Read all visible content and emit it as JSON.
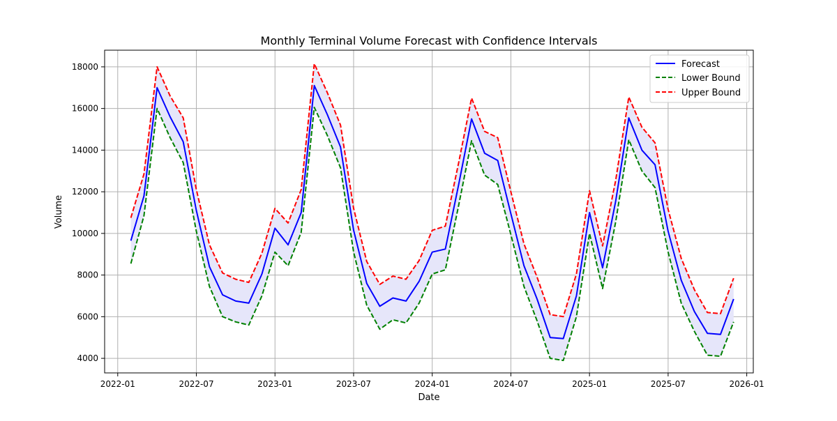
{
  "chart_data": {
    "type": "line",
    "title": "Monthly Terminal Volume Forecast with Confidence Intervals",
    "xlabel": "Date",
    "ylabel": "Volume",
    "x_range_months": [
      -1,
      48.5
    ],
    "ylim": [
      3300,
      18800
    ],
    "grid": true,
    "legend_position": "top-right",
    "x_ticks": [
      {
        "label": "2022-01",
        "month": 0
      },
      {
        "label": "2022-07",
        "month": 6
      },
      {
        "label": "2023-01",
        "month": 12
      },
      {
        "label": "2023-07",
        "month": 18
      },
      {
        "label": "2024-01",
        "month": 24
      },
      {
        "label": "2024-07",
        "month": 30
      },
      {
        "label": "2025-01",
        "month": 36
      },
      {
        "label": "2025-07",
        "month": 42
      },
      {
        "label": "2026-01",
        "month": 48
      }
    ],
    "y_ticks": [
      4000,
      6000,
      8000,
      10000,
      12000,
      14000,
      16000,
      18000
    ],
    "x_months_start": 1,
    "series": [
      {
        "name": "Forecast",
        "color": "#0000ff",
        "style": "solid",
        "values": [
          9650,
          11800,
          17000,
          15600,
          14400,
          11100,
          8400,
          7050,
          6750,
          6650,
          8050,
          10250,
          9450,
          11000,
          17100,
          15700,
          14150,
          10150,
          7600,
          6500,
          6900,
          6750,
          7700,
          9100,
          9250,
          12300,
          15500,
          13850,
          13500,
          10950,
          8450,
          6850,
          5000,
          4950,
          7000,
          11000,
          8350,
          11550,
          15550,
          14000,
          13300,
          10100,
          7750,
          6250,
          5200,
          5150,
          6850
        ]
      },
      {
        "name": "Lower Bound",
        "color": "#008000",
        "style": "dashed",
        "values": [
          8550,
          10850,
          16000,
          14600,
          13400,
          10100,
          7450,
          6000,
          5750,
          5600,
          7000,
          9100,
          8450,
          10050,
          16050,
          14700,
          13150,
          9100,
          6550,
          5400,
          5850,
          5700,
          6650,
          8050,
          8250,
          11300,
          14450,
          12800,
          12350,
          9950,
          7450,
          5800,
          4000,
          3900,
          6000,
          10000,
          7350,
          10550,
          14500,
          13000,
          12200,
          9100,
          6650,
          5300,
          4150,
          4100,
          5750
        ]
      },
      {
        "name": "Upper Bound",
        "color": "#ff0000",
        "style": "dashed",
        "values": [
          10750,
          12850,
          18000,
          16600,
          15550,
          12100,
          9450,
          8100,
          7800,
          7650,
          9050,
          11200,
          10500,
          12100,
          18150,
          16750,
          15200,
          11200,
          8650,
          7550,
          7950,
          7800,
          8700,
          10150,
          10350,
          13350,
          16500,
          14900,
          14600,
          12000,
          9500,
          7900,
          6100,
          6000,
          8050,
          12050,
          9400,
          12550,
          16550,
          15100,
          14350,
          11150,
          8800,
          7300,
          6200,
          6150,
          7850
        ]
      }
    ],
    "band_fill_color": "#e6e6fa"
  }
}
